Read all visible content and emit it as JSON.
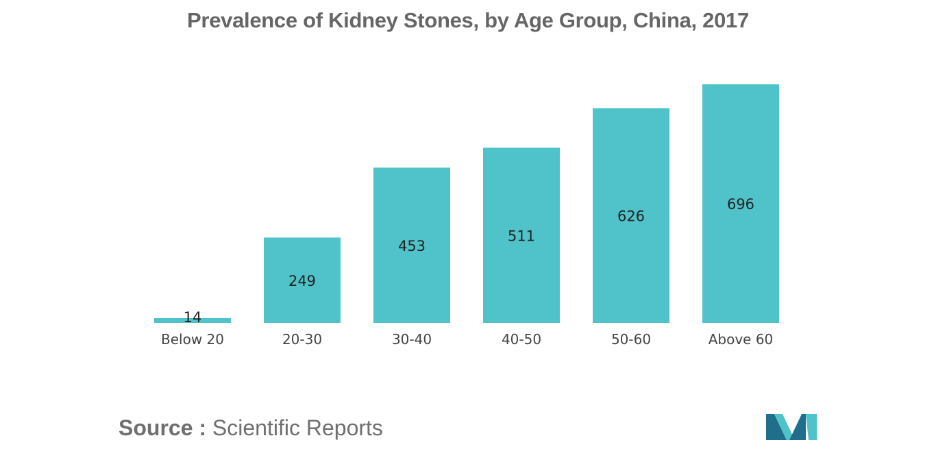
{
  "chart_data": {
    "type": "bar",
    "title": "Prevalence of Kidney Stones, by Age Group, China, 2017",
    "categories": [
      "Below 20",
      "20-30",
      "30-40",
      "40-50",
      "50-60",
      "Above 60"
    ],
    "values": [
      14,
      249,
      453,
      511,
      626,
      696
    ],
    "xlabel": "",
    "ylabel": "",
    "ylim": [
      0,
      700
    ],
    "grid": false,
    "legend": "none",
    "data_labels": true,
    "bar_color": "#4fc3c9"
  },
  "source": {
    "label": "Source :",
    "text": "Scientific Reports"
  },
  "logo": {
    "icon": "mordor-intelligence-logo-icon",
    "colors": [
      "#1f6f8b",
      "#4fc3c9"
    ]
  }
}
